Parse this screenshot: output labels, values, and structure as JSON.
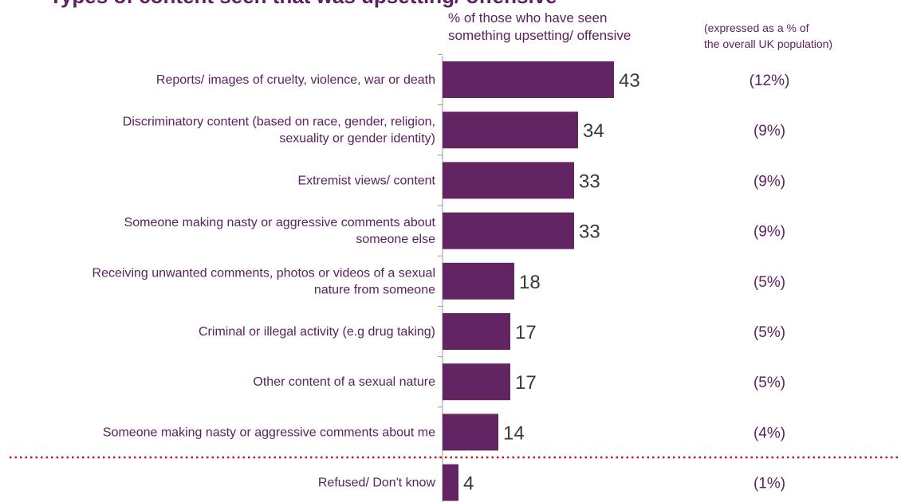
{
  "chart_data": {
    "type": "bar",
    "orientation": "horizontal",
    "title": "Types of content seen that was upsetting/ offensive",
    "value_header_lines": [
      "% of those who have seen",
      "something upsetting/ offensive"
    ],
    "population_header_lines": [
      "(expressed  as a % of",
      "the overall UK population)"
    ],
    "categories": [
      [
        "Reports/ images of cruelty, violence, war or death"
      ],
      [
        "Discriminatory content (based on race, gender, religion,",
        "sexuality or gender identity)"
      ],
      [
        "Extremist views/ content"
      ],
      [
        "Someone making nasty or aggressive comments about",
        "someone else"
      ],
      [
        "Receiving unwanted comments, photos or videos of a sexual",
        "nature from someone"
      ],
      [
        "Criminal or illegal activity (e.g drug taking)"
      ],
      [
        "Other content of a sexual nature"
      ],
      [
        "Someone making nasty or aggressive comments about me"
      ],
      [
        "Refused/ Don't know"
      ]
    ],
    "values": [
      43,
      34,
      33,
      33,
      18,
      17,
      17,
      14,
      4
    ],
    "value_labels": [
      "43",
      "34",
      "33",
      "33",
      "18",
      "17",
      "17",
      "14",
      "4"
    ],
    "population_labels": [
      "(12%)",
      "(9%)",
      "(9%)",
      "(9%)",
      "(5%)",
      "(5%)",
      "(5%)",
      "(4%)",
      "(1%)"
    ],
    "separator_after_index": 7,
    "colors": {
      "bar": "#622462",
      "separator": "#c0152b",
      "axis": "#9a9a9a",
      "text": "#5b2160",
      "value_text": "#3a3a3a"
    },
    "grid": false
  }
}
